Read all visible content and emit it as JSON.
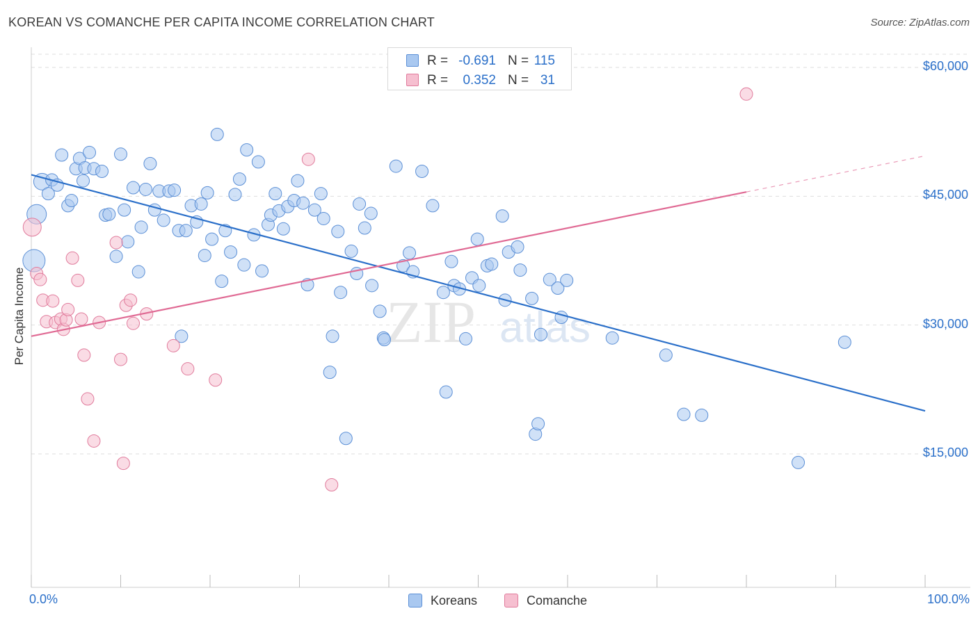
{
  "title": "KOREAN VS COMANCHE PER CAPITA INCOME CORRELATION CHART",
  "source": "Source: ZipAtlas.com",
  "watermark": {
    "zip": "ZIP",
    "atlas": "atlas"
  },
  "colors": {
    "blue_fill": "#a9c8f0",
    "blue_stroke": "#5b8fd6",
    "blue_line": "#2a6fc9",
    "pink_fill": "#f6bfd0",
    "pink_stroke": "#e07a9b",
    "pink_line": "#e06a94",
    "grid": "#dddddd",
    "tick_text": "#2a6fc9"
  },
  "stats": {
    "rows": [
      {
        "r_label": "R =",
        "r_value": "-0.691",
        "n_label": "N =",
        "n_value": "115"
      },
      {
        "r_label": "R =",
        "r_value": "0.352",
        "n_label": "N =",
        "n_value": "31"
      }
    ]
  },
  "legend": {
    "items": [
      {
        "label": "Koreans"
      },
      {
        "label": "Comanche"
      }
    ]
  },
  "chart_data": {
    "type": "scatter",
    "title": "KOREAN VS COMANCHE PER CAPITA INCOME CORRELATION CHART",
    "ylabel": "Per Capita Income",
    "xlabel": "",
    "xlim": [
      0,
      100
    ],
    "ylim": [
      0,
      63000
    ],
    "x_tick_labels": [
      "0.0%",
      "100.0%"
    ],
    "y_ticks": [
      {
        "value": 15000,
        "label": "$15,000"
      },
      {
        "value": 30000,
        "label": "$30,000"
      },
      {
        "value": 45000,
        "label": "$45,000"
      },
      {
        "value": 60000,
        "label": "$60,000"
      }
    ],
    "grid": true,
    "series": [
      {
        "name": "Koreans",
        "trend": {
          "x": [
            0,
            100
          ],
          "y": [
            47500,
            20000
          ],
          "dashed_after": null
        },
        "points": [
          [
            0.3,
            37500,
            16
          ],
          [
            0.6,
            42900,
            14
          ],
          [
            1.2,
            46700,
            12
          ],
          [
            1.9,
            45300,
            9
          ],
          [
            2.3,
            46900,
            9
          ],
          [
            2.9,
            46300,
            9
          ],
          [
            3.4,
            49800,
            9
          ],
          [
            4.1,
            43900,
            9
          ],
          [
            4.5,
            44500,
            9
          ],
          [
            5.0,
            48200,
            9
          ],
          [
            5.4,
            49400,
            9
          ],
          [
            5.8,
            46800,
            9
          ],
          [
            6.0,
            48300,
            9
          ],
          [
            6.5,
            50100,
            9
          ],
          [
            7.0,
            48200,
            9
          ],
          [
            7.9,
            47900,
            9
          ],
          [
            8.3,
            42800,
            9
          ],
          [
            8.7,
            42900,
            9
          ],
          [
            9.5,
            38000,
            9
          ],
          [
            10.0,
            49900,
            9
          ],
          [
            10.4,
            43400,
            9
          ],
          [
            10.8,
            39700,
            9
          ],
          [
            11.4,
            46000,
            9
          ],
          [
            12.0,
            36200,
            9
          ],
          [
            12.3,
            41400,
            9
          ],
          [
            12.8,
            45800,
            9
          ],
          [
            13.3,
            48800,
            9
          ],
          [
            13.8,
            43400,
            9
          ],
          [
            14.3,
            45600,
            9
          ],
          [
            14.8,
            42200,
            9
          ],
          [
            15.4,
            45600,
            9
          ],
          [
            16.0,
            45700,
            9
          ],
          [
            16.5,
            41000,
            9
          ],
          [
            16.8,
            28700,
            9
          ],
          [
            17.3,
            41000,
            9
          ],
          [
            17.9,
            43900,
            9
          ],
          [
            18.5,
            42000,
            9
          ],
          [
            19.0,
            44100,
            9
          ],
          [
            19.4,
            38100,
            9
          ],
          [
            19.7,
            45400,
            9
          ],
          [
            20.2,
            40000,
            9
          ],
          [
            20.8,
            52200,
            9
          ],
          [
            21.3,
            35100,
            9
          ],
          [
            21.7,
            41000,
            9
          ],
          [
            22.3,
            38500,
            9
          ],
          [
            22.8,
            45200,
            9
          ],
          [
            23.3,
            47000,
            9
          ],
          [
            23.8,
            37000,
            9
          ],
          [
            24.1,
            50400,
            9
          ],
          [
            24.9,
            40500,
            9
          ],
          [
            25.4,
            49000,
            9
          ],
          [
            25.8,
            36300,
            9
          ],
          [
            26.5,
            41700,
            9
          ],
          [
            26.8,
            42800,
            9
          ],
          [
            27.3,
            45300,
            9
          ],
          [
            27.7,
            43300,
            9
          ],
          [
            28.2,
            41200,
            9
          ],
          [
            28.7,
            43800,
            9
          ],
          [
            29.4,
            44500,
            9
          ],
          [
            29.8,
            46800,
            9
          ],
          [
            30.4,
            44200,
            9
          ],
          [
            30.9,
            34700,
            9
          ],
          [
            31.7,
            43400,
            9
          ],
          [
            32.4,
            45300,
            9
          ],
          [
            32.7,
            42400,
            9
          ],
          [
            33.7,
            28700,
            9
          ],
          [
            33.4,
            24500,
            9
          ],
          [
            34.3,
            40900,
            9
          ],
          [
            34.6,
            33800,
            9
          ],
          [
            35.2,
            16800,
            9
          ],
          [
            35.8,
            38600,
            9
          ],
          [
            36.4,
            36000,
            9
          ],
          [
            36.7,
            44100,
            9
          ],
          [
            37.3,
            41300,
            9
          ],
          [
            38.0,
            43000,
            9
          ],
          [
            38.1,
            34600,
            9
          ],
          [
            39.0,
            31600,
            9
          ],
          [
            39.4,
            28500,
            9
          ],
          [
            39.5,
            28300,
            9
          ],
          [
            40.8,
            48500,
            9
          ],
          [
            41.6,
            36900,
            9
          ],
          [
            42.3,
            38400,
            9
          ],
          [
            42.7,
            36200,
            9
          ],
          [
            43.7,
            47900,
            9
          ],
          [
            44.9,
            43900,
            9
          ],
          [
            46.1,
            33800,
            9
          ],
          [
            46.4,
            22200,
            9
          ],
          [
            47.0,
            37400,
            9
          ],
          [
            47.3,
            34600,
            9
          ],
          [
            47.9,
            34200,
            9
          ],
          [
            48.6,
            28400,
            9
          ],
          [
            49.3,
            35500,
            9
          ],
          [
            49.9,
            40000,
            9
          ],
          [
            50.1,
            34600,
            9
          ],
          [
            51.0,
            36900,
            9
          ],
          [
            51.5,
            37100,
            9
          ],
          [
            52.7,
            42700,
            9
          ],
          [
            53.0,
            32900,
            9
          ],
          [
            53.4,
            38500,
            9
          ],
          [
            54.4,
            39100,
            9
          ],
          [
            54.7,
            36400,
            9
          ],
          [
            56.0,
            33100,
            9
          ],
          [
            56.4,
            17300,
            9
          ],
          [
            56.7,
            18500,
            9
          ],
          [
            57.0,
            28900,
            9
          ],
          [
            58.0,
            35300,
            9
          ],
          [
            58.9,
            34300,
            9
          ],
          [
            59.3,
            30900,
            9
          ],
          [
            59.9,
            35200,
            9
          ],
          [
            65.0,
            28500,
            9
          ],
          [
            71.0,
            26500,
            9
          ],
          [
            73.0,
            19600,
            9
          ],
          [
            75.0,
            19500,
            9
          ],
          [
            85.8,
            14000,
            9
          ],
          [
            91.0,
            28000,
            9
          ]
        ]
      },
      {
        "name": "Comanche",
        "trend": {
          "x": [
            0,
            80
          ],
          "y": [
            28700,
            45500
          ],
          "dashed_to": [
            100,
            49700
          ]
        },
        "points": [
          [
            0.1,
            41400,
            13
          ],
          [
            0.6,
            36000,
            9
          ],
          [
            1.0,
            35300,
            9
          ],
          [
            1.3,
            32900,
            9
          ],
          [
            1.7,
            30400,
            9
          ],
          [
            2.4,
            32800,
            9
          ],
          [
            2.7,
            30300,
            9
          ],
          [
            3.3,
            30700,
            9
          ],
          [
            3.6,
            29500,
            9
          ],
          [
            3.9,
            30600,
            9
          ],
          [
            4.1,
            31800,
            9
          ],
          [
            4.6,
            37800,
            9
          ],
          [
            5.2,
            35200,
            9
          ],
          [
            5.6,
            30700,
            9
          ],
          [
            5.9,
            26500,
            9
          ],
          [
            6.3,
            21400,
            9
          ],
          [
            7.0,
            16500,
            9
          ],
          [
            7.6,
            30300,
            9
          ],
          [
            9.5,
            39600,
            9
          ],
          [
            10.0,
            26000,
            9
          ],
          [
            10.3,
            13900,
            9
          ],
          [
            10.6,
            32300,
            9
          ],
          [
            11.1,
            32900,
            9
          ],
          [
            11.4,
            30200,
            9
          ],
          [
            12.9,
            31300,
            9
          ],
          [
            15.9,
            27600,
            9
          ],
          [
            17.5,
            24900,
            9
          ],
          [
            20.6,
            23600,
            9
          ],
          [
            31.0,
            49300,
            9
          ],
          [
            33.6,
            11400,
            9
          ],
          [
            80.0,
            56900,
            9
          ]
        ]
      }
    ]
  }
}
